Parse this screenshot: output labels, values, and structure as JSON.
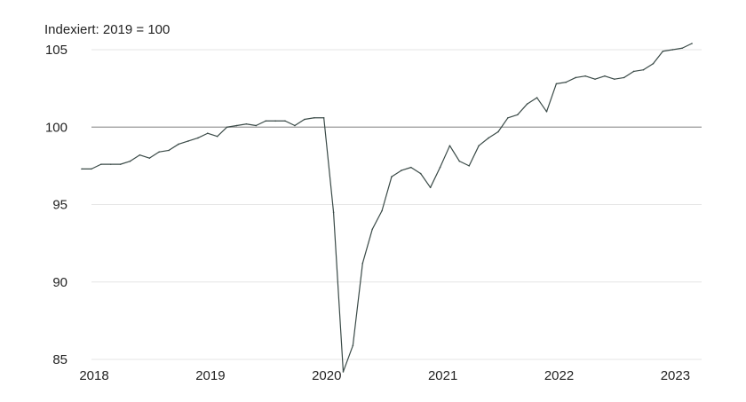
{
  "chart_data": {
    "type": "line",
    "unit_label": "Indexiert: 2019 = 100",
    "title": "",
    "xlabel": "",
    "ylabel": "",
    "ylim": [
      85,
      105
    ],
    "yticks": [
      85,
      90,
      95,
      100,
      105
    ],
    "xtick_labels": [
      "2018",
      "2019",
      "2020",
      "2021",
      "2022",
      "2023"
    ],
    "xlim": [
      "2018-01",
      "2023-05"
    ],
    "reference_line": 100,
    "grid": "horizontal",
    "colors": {
      "line": "#3a4a47",
      "reference": "#9a9a9a",
      "grid": "#e6e6e6",
      "text": "#222222"
    },
    "series": [
      {
        "x": [
          "2018-01",
          "2018-02",
          "2018-03",
          "2018-04",
          "2018-05",
          "2018-06",
          "2018-07",
          "2018-08",
          "2018-09",
          "2018-10",
          "2018-11",
          "2018-12",
          "2019-01",
          "2019-02",
          "2019-03",
          "2019-04",
          "2019-05",
          "2019-06",
          "2019-07",
          "2019-08",
          "2019-09",
          "2019-10",
          "2019-11",
          "2019-12",
          "2020-01",
          "2020-02",
          "2020-03",
          "2020-04",
          "2020-05",
          "2020-06",
          "2020-07",
          "2020-08",
          "2020-09",
          "2020-10",
          "2020-11",
          "2020-12",
          "2021-01",
          "2021-02",
          "2021-03",
          "2021-04",
          "2021-05",
          "2021-06",
          "2021-07",
          "2021-08",
          "2021-09",
          "2021-10",
          "2021-11",
          "2021-12",
          "2022-01",
          "2022-02",
          "2022-03",
          "2022-04",
          "2022-05",
          "2022-06",
          "2022-07",
          "2022-08",
          "2022-09",
          "2022-10",
          "2022-11",
          "2022-12",
          "2023-01",
          "2023-02",
          "2023-03",
          "2023-04"
        ],
        "values": [
          97.3,
          97.3,
          97.6,
          97.6,
          97.6,
          97.8,
          98.2,
          98.0,
          98.4,
          98.5,
          98.9,
          99.1,
          99.3,
          99.6,
          99.4,
          100.0,
          100.1,
          100.2,
          100.1,
          100.4,
          100.4,
          100.4,
          100.1,
          100.5,
          100.6,
          100.6,
          94.5,
          84.2,
          85.9,
          91.2,
          93.4,
          94.6,
          96.8,
          97.2,
          97.4,
          97.0,
          96.1,
          97.4,
          98.8,
          97.8,
          97.5,
          98.8,
          99.3,
          99.7,
          100.6,
          100.8,
          101.5,
          101.9,
          101.0,
          102.8,
          102.9,
          103.2,
          103.3,
          103.1,
          103.3,
          103.1,
          103.2,
          103.6,
          103.7,
          104.1,
          104.9,
          105.0,
          105.1,
          105.4
        ]
      }
    ]
  }
}
